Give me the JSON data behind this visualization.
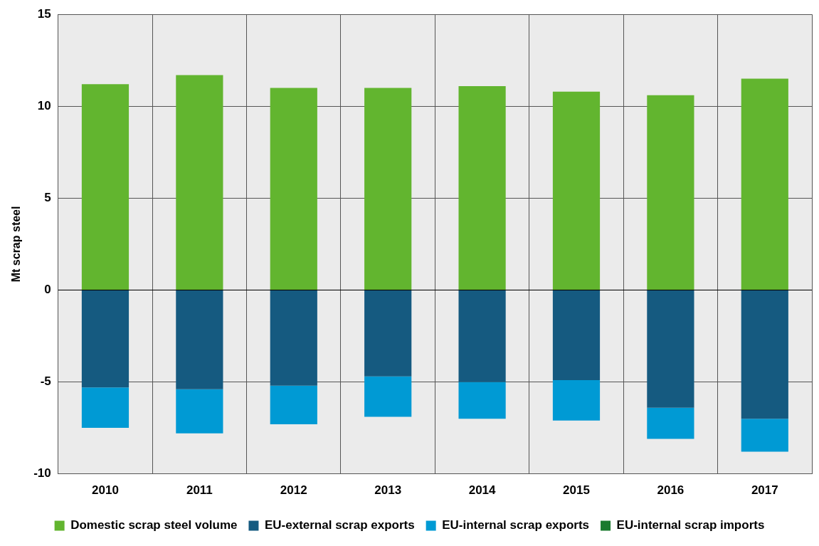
{
  "chart_data": {
    "type": "bar",
    "ylabel": "Mt scrap steel",
    "stacked": true,
    "categories": [
      "2010",
      "2011",
      "2012",
      "2013",
      "2014",
      "2015",
      "2016",
      "2017"
    ],
    "series": [
      {
        "name": "Domestic scrap steel volume",
        "color": "#62b52f",
        "values": [
          11.2,
          11.7,
          11.0,
          11.0,
          11.1,
          10.8,
          10.6,
          11.5
        ]
      },
      {
        "name": "EU-external scrap exports",
        "color": "#155a80",
        "values": [
          -5.3,
          -5.4,
          -5.2,
          -4.7,
          -5.0,
          -4.9,
          -6.4,
          -7.0
        ]
      },
      {
        "name": "EU-internal scrap exports",
        "color": "#009ad4",
        "values": [
          -2.2,
          -2.4,
          -2.1,
          -2.2,
          -2.0,
          -2.2,
          -1.7,
          -1.8
        ]
      },
      {
        "name": "EU-internal scrap imports",
        "color": "#1a7a2e",
        "values": [
          0,
          0,
          0,
          0,
          0,
          0,
          0,
          0
        ]
      }
    ],
    "ylim": [
      -10,
      15
    ],
    "yticks": [
      -10,
      -5,
      0,
      5,
      10,
      15
    ],
    "grid": true,
    "legend": "bottom"
  }
}
